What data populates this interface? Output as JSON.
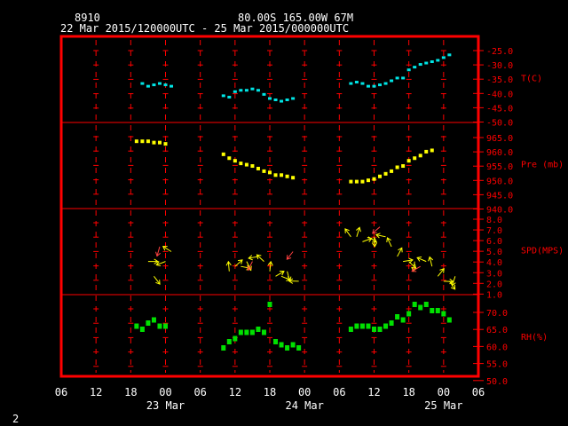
{
  "header": {
    "station": "8910",
    "location": "80.00S  165.00W    67M",
    "period": "22 Mar 2015/120000UTC - 25 Mar 2015/000000UTC"
  },
  "footer": {
    "page_number": "2"
  },
  "colors": {
    "frame": "#ff0000",
    "grid": "#ff0000",
    "text": "#ffffff",
    "temperature": "#00e5e5",
    "pressure": "#ffff00",
    "wind": "#ffff00",
    "wind_alt": "#ff4040",
    "humidity": "#00e000"
  },
  "x_axis": {
    "tick_labels": [
      "06",
      "12",
      "18",
      "00",
      "06",
      "12",
      "18",
      "00",
      "06",
      "12",
      "18",
      "00",
      "06"
    ],
    "date_labels": [
      "23 Mar",
      "24 Mar",
      "25 Mar"
    ]
  },
  "chart_data": [
    {
      "type": "scatter",
      "name": "temperature",
      "ylabel": "T(C)",
      "y_ticks": [
        "-25.0",
        "-30.0",
        "-35.0",
        "-40.0",
        "-45.0",
        "-50.0"
      ],
      "ylim": [
        -50,
        -22
      ],
      "x_unit": "hours since 22 Mar 06 UTC",
      "points": [
        [
          14,
          -37
        ],
        [
          15,
          -38
        ],
        [
          16,
          -37.5
        ],
        [
          17,
          -37
        ],
        [
          18,
          -37.5
        ],
        [
          19,
          -38
        ],
        [
          28,
          -41.5
        ],
        [
          29,
          -42
        ],
        [
          30,
          -40
        ],
        [
          31,
          -39.5
        ],
        [
          32,
          -39.5
        ],
        [
          33,
          -39
        ],
        [
          34,
          -39.5
        ],
        [
          35,
          -41
        ],
        [
          36,
          -42.5
        ],
        [
          37,
          -43
        ],
        [
          38,
          -43.5
        ],
        [
          39,
          -43
        ],
        [
          40,
          -42.5
        ],
        [
          50,
          -37
        ],
        [
          51,
          -36.5
        ],
        [
          52,
          -37
        ],
        [
          53,
          -38
        ],
        [
          54,
          -38
        ],
        [
          55,
          -37.5
        ],
        [
          56,
          -37
        ],
        [
          57,
          -36
        ],
        [
          58,
          -35
        ],
        [
          59,
          -35
        ],
        [
          60,
          -32
        ],
        [
          61,
          -31
        ],
        [
          62,
          -30
        ],
        [
          63,
          -29.5
        ],
        [
          64,
          -29
        ],
        [
          65,
          -28.5
        ],
        [
          66,
          -27.5
        ],
        [
          67,
          -26.5
        ]
      ]
    },
    {
      "type": "scatter",
      "name": "pressure",
      "ylabel": "Pre (mb)",
      "y_ticks": [
        "965.0",
        "960.0",
        "955.0",
        "950.0",
        "945.0",
        "940.0"
      ],
      "ylim": [
        940,
        969
      ],
      "points": [
        [
          13,
          964.5
        ],
        [
          14,
          964.5
        ],
        [
          15,
          964.5
        ],
        [
          16,
          964
        ],
        [
          17,
          964
        ],
        [
          18,
          963.5
        ],
        [
          28,
          959.5
        ],
        [
          29,
          958
        ],
        [
          30,
          957
        ],
        [
          31,
          956
        ],
        [
          32,
          955.5
        ],
        [
          33,
          955
        ],
        [
          34,
          954
        ],
        [
          35,
          953
        ],
        [
          36,
          952.5
        ],
        [
          37,
          951.5
        ],
        [
          38,
          951.5
        ],
        [
          39,
          951
        ],
        [
          40,
          950.5
        ],
        [
          50,
          949
        ],
        [
          51,
          949
        ],
        [
          52,
          949
        ],
        [
          53,
          949.5
        ],
        [
          54,
          950
        ],
        [
          55,
          951
        ],
        [
          56,
          952
        ],
        [
          57,
          953
        ],
        [
          58,
          954.5
        ],
        [
          59,
          955
        ],
        [
          60,
          957
        ],
        [
          61,
          958
        ],
        [
          62,
          959
        ],
        [
          63,
          960.5
        ],
        [
          64,
          961
        ]
      ]
    },
    {
      "type": "scatter",
      "name": "wind",
      "ylabel": "SPD(MPS)",
      "y_ticks": [
        "8.0",
        "7.0",
        "6.0",
        "5.0",
        "4.0",
        "3.0",
        "2.0",
        "1.0"
      ],
      "ylim": [
        0.5,
        8.5
      ],
      "points": [
        [
          15,
          3.5
        ],
        [
          16,
          2
        ],
        [
          17,
          5
        ],
        [
          18,
          3.5
        ],
        [
          19,
          4.5
        ],
        [
          29,
          2.5
        ],
        [
          30,
          3
        ],
        [
          31,
          3
        ],
        [
          32,
          3.5
        ],
        [
          33,
          3.5
        ],
        [
          34,
          4
        ],
        [
          35,
          3.5
        ],
        [
          36,
          2.5
        ],
        [
          37,
          2
        ],
        [
          38,
          2
        ],
        [
          39,
          2.5
        ],
        [
          40,
          4.5
        ],
        [
          41,
          1.5
        ],
        [
          50,
          6
        ],
        [
          51,
          6
        ],
        [
          52,
          5.5
        ],
        [
          53,
          6
        ],
        [
          54,
          6
        ],
        [
          55,
          7
        ],
        [
          56,
          6
        ],
        [
          57,
          5
        ],
        [
          58,
          4
        ],
        [
          59,
          3.5
        ],
        [
          60,
          3.5
        ],
        [
          61,
          3.5
        ],
        [
          62,
          3
        ],
        [
          63,
          3.5
        ],
        [
          64,
          3
        ],
        [
          65,
          2
        ],
        [
          66,
          1.5
        ],
        [
          67,
          1.5
        ],
        [
          68,
          2
        ]
      ]
    },
    {
      "type": "scatter",
      "name": "humidity",
      "ylabel": "RH(%)",
      "y_ticks": [
        "70.0",
        "65.0",
        "60.0",
        "55.0",
        "50.0"
      ],
      "ylim": [
        50,
        74
      ],
      "points": [
        [
          13,
          65
        ],
        [
          14,
          64
        ],
        [
          15,
          66
        ],
        [
          16,
          67
        ],
        [
          17,
          65
        ],
        [
          18,
          65
        ],
        [
          28,
          58
        ],
        [
          29,
          60
        ],
        [
          30,
          61
        ],
        [
          31,
          63
        ],
        [
          32,
          63
        ],
        [
          33,
          63
        ],
        [
          34,
          64
        ],
        [
          35,
          63
        ],
        [
          36,
          72
        ],
        [
          37,
          60
        ],
        [
          38,
          59
        ],
        [
          39,
          58
        ],
        [
          40,
          59
        ],
        [
          41,
          58
        ],
        [
          50,
          64
        ],
        [
          51,
          65
        ],
        [
          52,
          65
        ],
        [
          53,
          65
        ],
        [
          54,
          64
        ],
        [
          55,
          64
        ],
        [
          56,
          65
        ],
        [
          57,
          66
        ],
        [
          58,
          68
        ],
        [
          59,
          67
        ],
        [
          60,
          69
        ],
        [
          61,
          72
        ],
        [
          62,
          71
        ],
        [
          63,
          72
        ],
        [
          64,
          70
        ],
        [
          65,
          70
        ],
        [
          66,
          69
        ],
        [
          67,
          67
        ]
      ]
    }
  ]
}
